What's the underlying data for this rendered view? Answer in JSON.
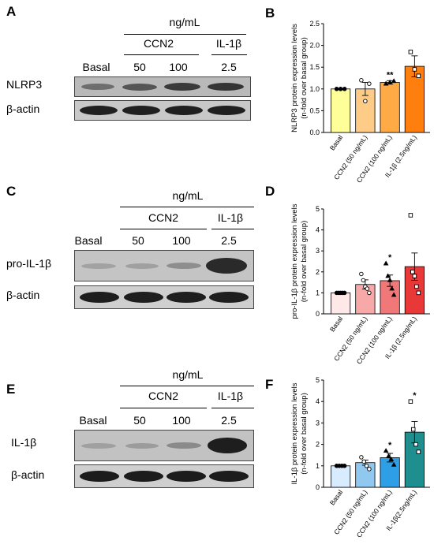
{
  "panels": {
    "A": {
      "letter": "A",
      "unit": "ng/mL",
      "group_ccn2": "CCN2",
      "group_il": "IL-1β",
      "cols": [
        "Basal",
        "50",
        "100",
        "2.5"
      ],
      "rows": [
        "NLRP3",
        "β-actin"
      ]
    },
    "C": {
      "letter": "C",
      "unit": "ng/mL",
      "group_ccn2": "CCN2",
      "group_il": "IL-1β",
      "cols": [
        "Basal",
        "50",
        "100",
        "2.5"
      ],
      "rows": [
        "pro-IL-1β",
        "β-actin"
      ]
    },
    "E": {
      "letter": "E",
      "unit": "ng/mL",
      "group_ccn2": "CCN2",
      "group_il": "IL-1β",
      "cols": [
        "Basal",
        "50",
        "100",
        "2.5"
      ],
      "rows": [
        "IL-1β",
        "β-actin"
      ]
    }
  },
  "chart_data": [
    {
      "letter": "B",
      "type": "bar",
      "ylabel": "NLRP3 protein expression levels",
      "ylabel2": "(n-fold over basal group)",
      "categories": [
        "Basal",
        "CCN2 (50 ng/mL)",
        "CCN2 (100 ng/mL)",
        "IL-1β (2.5ng/mL)"
      ],
      "values": [
        1.0,
        1.0,
        1.15,
        1.52
      ],
      "errors": [
        0.0,
        0.15,
        0.04,
        0.24
      ],
      "significance": [
        "",
        "",
        "**",
        ""
      ],
      "points": [
        [
          1.0,
          1.0,
          1.0
        ],
        [
          1.2,
          0.72,
          1.12
        ],
        [
          1.12,
          1.15,
          1.18
        ],
        [
          1.85,
          1.45,
          1.3
        ]
      ],
      "ylim": [
        0,
        2.5
      ],
      "yticks": [
        "0.0",
        "0.5",
        "1.0",
        "1.5",
        "2.0",
        "2.5"
      ],
      "colors": [
        "#ffff99",
        "#ffcc88",
        "#ffaa44",
        "#ff7f0e"
      ],
      "markers": [
        "circle",
        "circle",
        "triangle",
        "square"
      ]
    },
    {
      "letter": "D",
      "type": "bar",
      "ylabel": "pro-IL-1β protein expression levels",
      "ylabel2": "(n-fold over basal group)",
      "categories": [
        "Basal",
        "CCN2 (50 ng/mL)",
        "CCN2 (100 ng/mL)",
        "IL-1β (2.5ng/mL)"
      ],
      "values": [
        1.0,
        1.4,
        1.58,
        2.25
      ],
      "errors": [
        0.0,
        0.22,
        0.27,
        0.65
      ],
      "significance": [
        "",
        "",
        "*",
        ""
      ],
      "points": [
        [
          1.0,
          1.0,
          1.0,
          1.0,
          1.0
        ],
        [
          1.9,
          1.6,
          1.3,
          1.2,
          1.0
        ],
        [
          2.4,
          1.8,
          1.6,
          1.2,
          0.9
        ],
        [
          4.7,
          2.0,
          1.8,
          1.3,
          1.0
        ]
      ],
      "ylim": [
        0,
        5
      ],
      "yticks": [
        "0",
        "1",
        "2",
        "3",
        "4",
        "5"
      ],
      "colors": [
        "#ffe8e8",
        "#f7a8a8",
        "#f07878",
        "#e83838"
      ],
      "markers": [
        "circle",
        "circle",
        "triangle",
        "square"
      ]
    },
    {
      "letter": "F",
      "type": "bar",
      "ylabel": "IL-1β protein expression levels",
      "ylabel2": "(n-fold over basal group)",
      "categories": [
        "Basal",
        "CCN2 (50 ng/mL)",
        "CCN2 (100 ng/mL)",
        "IL-1β(2.5ng/mL)"
      ],
      "values": [
        1.0,
        1.15,
        1.38,
        2.57
      ],
      "errors": [
        0.0,
        0.12,
        0.2,
        0.5
      ],
      "significance": [
        "",
        "",
        "*",
        "*"
      ],
      "points": [
        [
          1.0,
          1.0,
          1.0,
          1.0
        ],
        [
          1.4,
          1.2,
          1.0,
          0.85
        ],
        [
          1.7,
          1.45,
          1.3,
          1.05
        ],
        [
          4.0,
          2.7,
          2.0,
          1.65
        ]
      ],
      "ylim": [
        0,
        5
      ],
      "yticks": [
        "0",
        "1",
        "2",
        "3",
        "4",
        "5"
      ],
      "colors": [
        "#d8ecff",
        "#90c8f0",
        "#2e9ee6",
        "#1f8e8e"
      ],
      "markers": [
        "circle",
        "circle",
        "triangle",
        "square"
      ]
    }
  ]
}
